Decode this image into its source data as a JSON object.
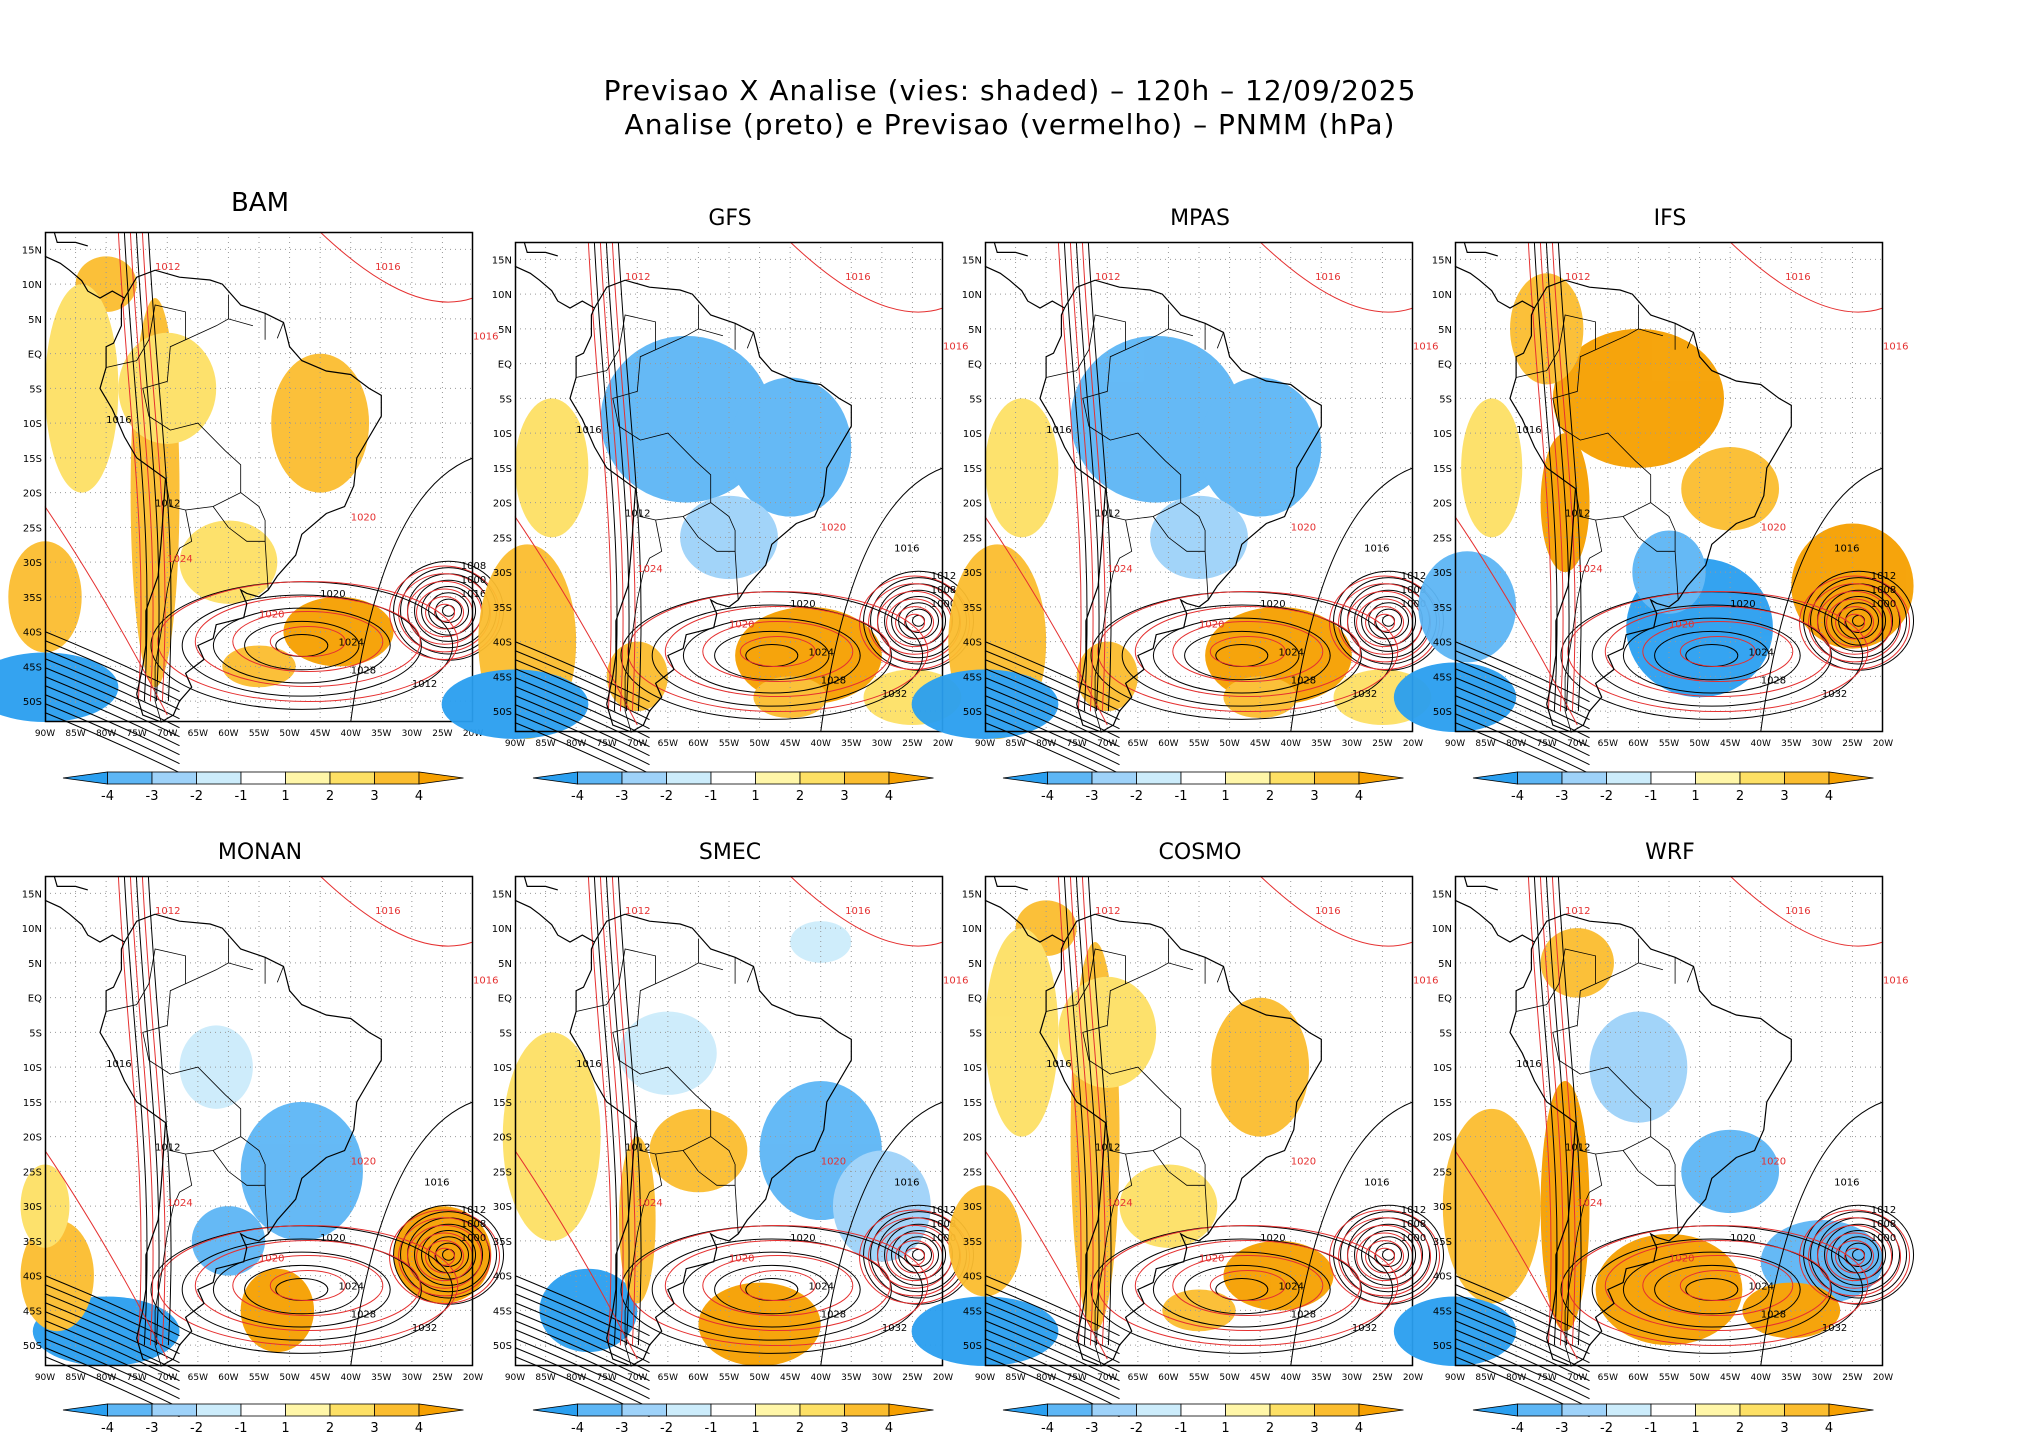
{
  "title": {
    "line1": "Previsao X Analise (vies: shaded) – 120h – 12/09/2025",
    "line2": "Analise (preto) e Previsao (vermelho) – PNMM (hPa)"
  },
  "lat_labels": [
    "15N",
    "10N",
    "5N",
    "EQ",
    "5S",
    "10S",
    "15S",
    "20S",
    "25S",
    "30S",
    "35S",
    "40S",
    "45S",
    "50S"
  ],
  "lon_labels": [
    "90W",
    "85W",
    "80W",
    "75W",
    "70W",
    "65W",
    "60W",
    "55W",
    "50W",
    "45W",
    "40W",
    "35W",
    "30W",
    "25W",
    "20W"
  ],
  "colorbar": {
    "ticks": [
      "-4",
      "-3",
      "-2",
      "-1",
      "1",
      "2",
      "3",
      "4"
    ],
    "colors": [
      "#2a9ff0",
      "#5db6f5",
      "#9ed2f9",
      "#ccecfb",
      "#ffffff",
      "#fff6a8",
      "#fde065",
      "#fbbd2f",
      "#f6a000"
    ]
  },
  "colors": {
    "analysis_contour": "#000000",
    "forecast_contour": "#e53030",
    "coast": "#000000",
    "grid": "#999999"
  },
  "panels": [
    {
      "name": "BAM",
      "bias": "warm",
      "labels_black": [
        "1012",
        "1016",
        "1020",
        "1024",
        "1028",
        "1012",
        "1008",
        "1000",
        "1016"
      ],
      "labels_red": [
        "1012",
        "1016",
        "1020",
        "1024",
        "1016",
        "1020"
      ]
    },
    {
      "name": "GFS",
      "bias": "cold",
      "labels_black": [
        "1012",
        "1016",
        "1020",
        "1024",
        "1028",
        "1032",
        "1012",
        "1008",
        "1000",
        "1016"
      ],
      "labels_red": [
        "1012",
        "1016",
        "1020",
        "1024",
        "1016",
        "1020"
      ]
    },
    {
      "name": "MPAS",
      "bias": "cold",
      "labels_black": [
        "1012",
        "1016",
        "1020",
        "1024",
        "1028",
        "1032",
        "1012",
        "1008",
        "1000",
        "1016"
      ],
      "labels_red": [
        "1012",
        "1016",
        "1020",
        "1024",
        "1016",
        "1020"
      ]
    },
    {
      "name": "IFS",
      "bias": "warm-north",
      "labels_black": [
        "1012",
        "1016",
        "1020",
        "1024",
        "1028",
        "1032",
        "1012",
        "1008",
        "1000",
        "1016"
      ],
      "labels_red": [
        "1012",
        "1016",
        "1020",
        "1024",
        "1016",
        "1020"
      ]
    },
    {
      "name": "MONAN",
      "bias": "cold-south",
      "labels_black": [
        "1012",
        "1016",
        "1020",
        "1024",
        "1028",
        "1032",
        "1012",
        "1008",
        "1000",
        "1016"
      ],
      "labels_red": [
        "1012",
        "1016",
        "1020",
        "1024",
        "1016",
        "1020"
      ]
    },
    {
      "name": "SMEC",
      "bias": "mixed",
      "labels_black": [
        "1012",
        "1016",
        "1020",
        "1024",
        "1028",
        "1032",
        "1012",
        "1008",
        "1000",
        "1016"
      ],
      "labels_red": [
        "1012",
        "1016",
        "1020",
        "1024",
        "1016",
        "1020"
      ]
    },
    {
      "name": "COSMO",
      "bias": "warm",
      "labels_black": [
        "1012",
        "1016",
        "1020",
        "1024",
        "1028",
        "1032",
        "1012",
        "1008",
        "1000",
        "1016"
      ],
      "labels_red": [
        "1012",
        "1016",
        "1020",
        "1024",
        "1016",
        "1020"
      ]
    },
    {
      "name": "WRF",
      "bias": "warm-south",
      "labels_black": [
        "1012",
        "1016",
        "1020",
        "1024",
        "1028",
        "1032",
        "1012",
        "1008",
        "1000",
        "1016"
      ],
      "labels_red": [
        "1012",
        "1016",
        "1020",
        "1024",
        "1016",
        "1020"
      ]
    }
  ]
}
